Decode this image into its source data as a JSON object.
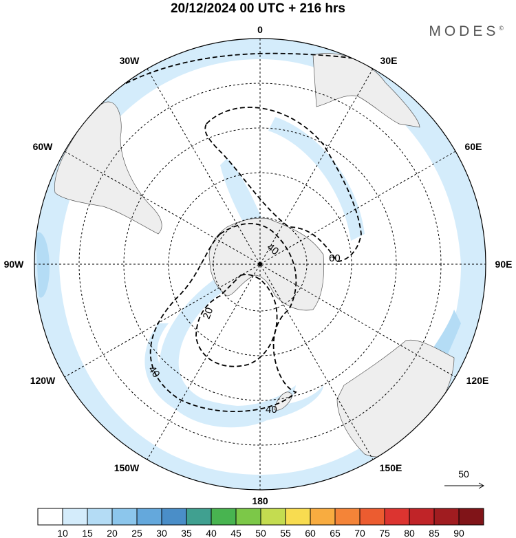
{
  "title": "20/12/2024  00 UTC  + 216 hrs",
  "brand": "MODES",
  "brand_mark": "©",
  "longitude_labels": [
    "0",
    "30E",
    "60E",
    "90E",
    "120E",
    "150E",
    "180",
    "150W",
    "120W",
    "90W",
    "60W",
    "30W"
  ],
  "contour_labels": [
    "40",
    "60",
    "20",
    "40",
    "40"
  ],
  "reference_vector_label": "50",
  "colorbar": {
    "labels": [
      "10",
      "15",
      "20",
      "25",
      "30",
      "35",
      "40",
      "45",
      "50",
      "55",
      "60",
      "65",
      "70",
      "75",
      "80",
      "85",
      "90"
    ],
    "colors": [
      "#ffffff",
      "#d4ecfb",
      "#b4dcf5",
      "#8cc6ec",
      "#64a8dc",
      "#4a8ec8",
      "#40a090",
      "#48b450",
      "#7cc848",
      "#c4dc50",
      "#f8dc50",
      "#f8ac40",
      "#f48438",
      "#ec5c30",
      "#dc3430",
      "#c02428",
      "#a01c20",
      "#801418"
    ]
  },
  "colors": {
    "land": "#eeeeee",
    "shade_light": "#d4ecfb",
    "shade_mid": "#b4dcf5",
    "coast": "#555555",
    "grid": "#000000"
  }
}
